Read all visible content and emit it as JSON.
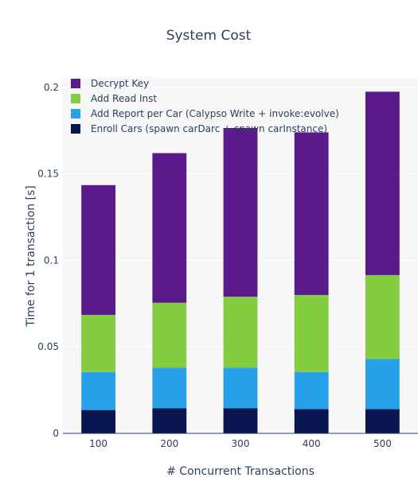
{
  "chart_data": {
    "type": "bar",
    "stacked": true,
    "title": "System Cost",
    "xlabel": "# Concurrent Transactions",
    "ylabel": "Time for 1 transaction [s]",
    "categories": [
      "100",
      "200",
      "300",
      "400",
      "500"
    ],
    "ylim": [
      0,
      0.205
    ],
    "yticks": [
      0,
      0.05,
      0.1,
      0.15,
      0.2
    ],
    "ytick_labels": [
      "0",
      "0.05",
      "0.1",
      "0.15",
      "0.2"
    ],
    "grid": true,
    "legend_position": "top-left",
    "series": [
      {
        "name": "Enroll Cars (spawn carDarc + spawn carInstance)",
        "color": "#08154f",
        "values": [
          0.0135,
          0.0145,
          0.0145,
          0.014,
          0.014
        ]
      },
      {
        "name": "Add Report per Car (Calypso Write + invoke:evolve)",
        "color": "#27a1ea",
        "values": [
          0.022,
          0.0235,
          0.0235,
          0.0215,
          0.029
        ]
      },
      {
        "name": "Add Read Inst",
        "color": "#84cc40",
        "values": [
          0.033,
          0.0375,
          0.041,
          0.0445,
          0.0485
        ]
      },
      {
        "name": "Decrypt Key",
        "color": "#5a1a8c",
        "values": [
          0.075,
          0.0865,
          0.0975,
          0.094,
          0.106
        ]
      }
    ]
  }
}
